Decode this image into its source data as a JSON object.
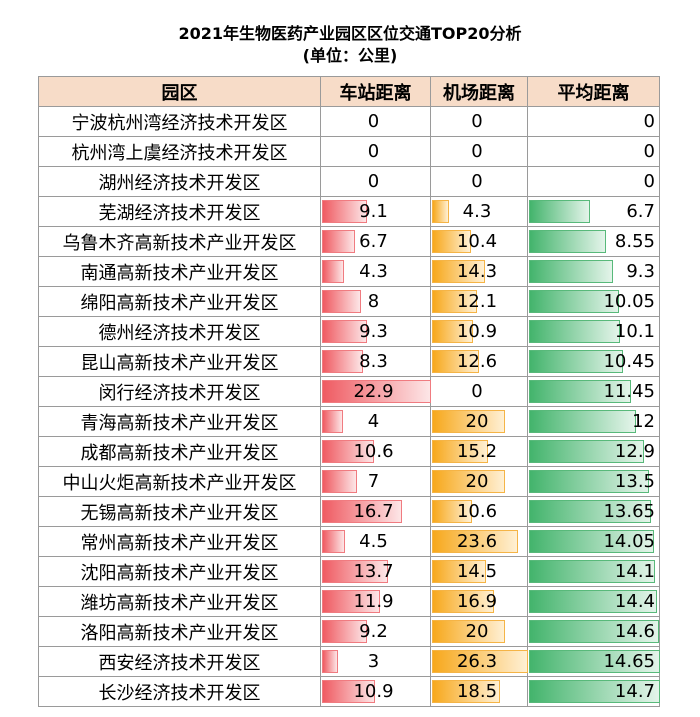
{
  "title": "2021年生物医药产业园区区位交通TOP20分析",
  "subtitle": "(单位：公里)",
  "chart_data": {
    "type": "table",
    "columns": [
      "园区",
      "车站距离",
      "机场距离",
      "平均距离"
    ],
    "rows": [
      {
        "park": "宁波杭州湾经济技术开发区",
        "station": 0,
        "airport": 0,
        "average": 0
      },
      {
        "park": "杭州湾上虞经济技术开发区",
        "station": 0,
        "airport": 0,
        "average": 0
      },
      {
        "park": "湖州经济技术开发区",
        "station": 0,
        "airport": 0,
        "average": 0
      },
      {
        "park": "芜湖经济技术开发区",
        "station": 9.1,
        "airport": 4.3,
        "average": 6.7
      },
      {
        "park": "乌鲁木齐高新技术产业开发区",
        "station": 6.7,
        "airport": 10.4,
        "average": 8.55
      },
      {
        "park": "南通高新技术产业开发区",
        "station": 4.3,
        "airport": 14.3,
        "average": 9.3
      },
      {
        "park": "绵阳高新技术产业开发区",
        "station": 8,
        "airport": 12.1,
        "average": 10.05
      },
      {
        "park": "德州经济技术开发区",
        "station": 9.3,
        "airport": 10.9,
        "average": 10.1
      },
      {
        "park": "昆山高新技术产业开发区",
        "station": 8.3,
        "airport": 12.6,
        "average": 10.45
      },
      {
        "park": "闵行经济技术开发区",
        "station": 22.9,
        "airport": 0,
        "average": 11.45
      },
      {
        "park": "青海高新技术产业开发区",
        "station": 4,
        "airport": 20,
        "average": 12
      },
      {
        "park": "成都高新技术产业开发区",
        "station": 10.6,
        "airport": 15.2,
        "average": 12.9
      },
      {
        "park": "中山火炬高新技术产业开发区",
        "station": 7,
        "airport": 20,
        "average": 13.5
      },
      {
        "park": "无锡高新技术产业开发区",
        "station": 16.7,
        "airport": 10.6,
        "average": 13.65
      },
      {
        "park": "常州高新技术产业开发区",
        "station": 4.5,
        "airport": 23.6,
        "average": 14.05
      },
      {
        "park": "沈阳高新技术产业开发区",
        "station": 13.7,
        "airport": 14.5,
        "average": 14.1
      },
      {
        "park": "潍坊高新技术产业开发区",
        "station": 11.9,
        "airport": 16.9,
        "average": 14.4
      },
      {
        "park": "洛阳高新技术产业开发区",
        "station": 9.2,
        "airport": 20,
        "average": 14.6
      },
      {
        "park": "西安经济技术开发区",
        "station": 3,
        "airport": 26.3,
        "average": 14.65
      },
      {
        "park": "长沙经济技术开发区",
        "station": 10.9,
        "airport": 18.5,
        "average": 14.7
      }
    ],
    "colors": {
      "station": "#ef5b62",
      "airport": "#f7a81c",
      "average": "#43b46c"
    }
  }
}
